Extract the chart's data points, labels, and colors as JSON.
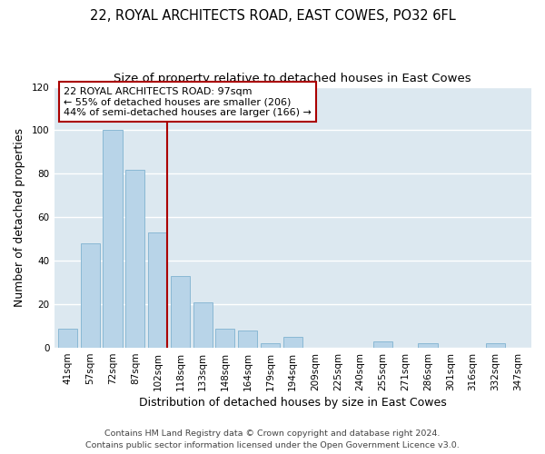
{
  "title": "22, ROYAL ARCHITECTS ROAD, EAST COWES, PO32 6FL",
  "subtitle": "Size of property relative to detached houses in East Cowes",
  "xlabel": "Distribution of detached houses by size in East Cowes",
  "ylabel": "Number of detached properties",
  "footer_line1": "Contains HM Land Registry data © Crown copyright and database right 2024.",
  "footer_line2": "Contains public sector information licensed under the Open Government Licence v3.0.",
  "bar_labels": [
    "41sqm",
    "57sqm",
    "72sqm",
    "87sqm",
    "102sqm",
    "118sqm",
    "133sqm",
    "148sqm",
    "164sqm",
    "179sqm",
    "194sqm",
    "209sqm",
    "225sqm",
    "240sqm",
    "255sqm",
    "271sqm",
    "286sqm",
    "301sqm",
    "316sqm",
    "332sqm",
    "347sqm"
  ],
  "bar_values": [
    9,
    48,
    100,
    82,
    53,
    33,
    21,
    9,
    8,
    2,
    5,
    0,
    0,
    0,
    3,
    0,
    2,
    0,
    0,
    2,
    0
  ],
  "bar_color": "#b8d4e8",
  "bar_edge_color": "#8ab8d4",
  "highlight_index": 4,
  "highlight_line_color": "#aa0000",
  "ylim": [
    0,
    120
  ],
  "yticks": [
    0,
    20,
    40,
    60,
    80,
    100,
    120
  ],
  "annotation_title": "22 ROYAL ARCHITECTS ROAD: 97sqm",
  "annotation_line1": "← 55% of detached houses are smaller (206)",
  "annotation_line2": "44% of semi-detached houses are larger (166) →",
  "annotation_box_color": "#ffffff",
  "annotation_border_color": "#aa0000",
  "background_color": "#ffffff",
  "plot_background_color": "#dce8f0",
  "grid_color": "#ffffff",
  "title_fontsize": 10.5,
  "subtitle_fontsize": 9.5,
  "axis_label_fontsize": 9,
  "tick_fontsize": 7.5,
  "annotation_fontsize": 8,
  "footer_fontsize": 6.8
}
